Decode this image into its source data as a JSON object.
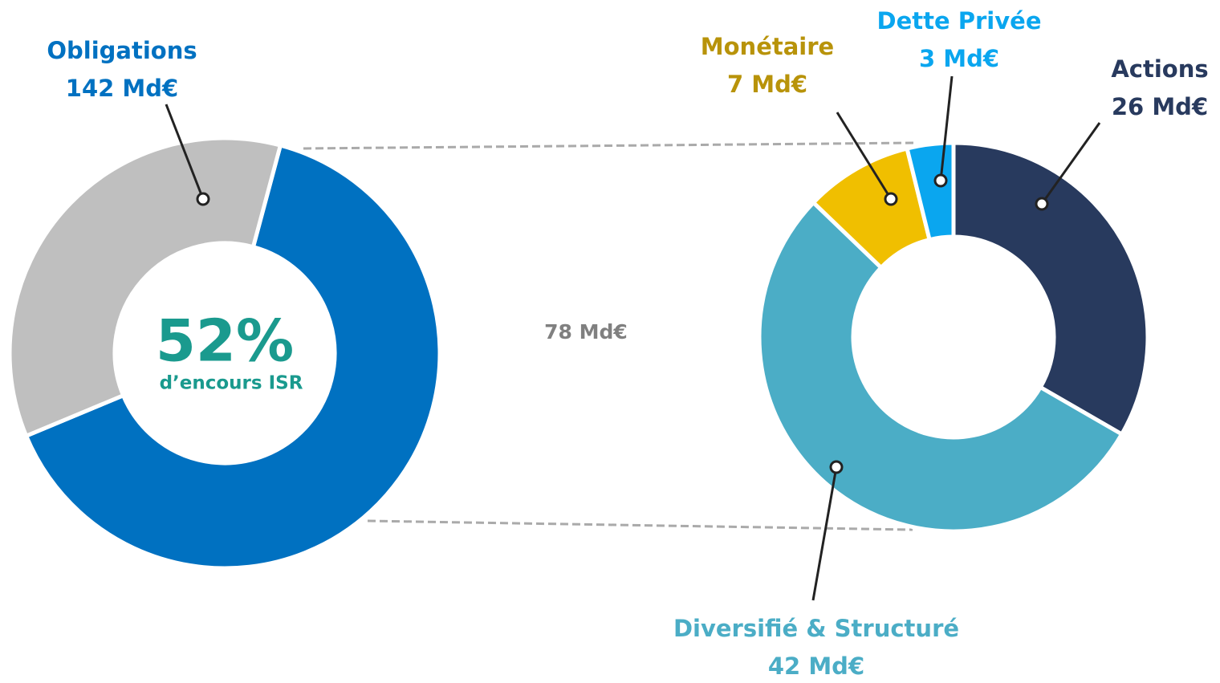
{
  "chart_data": [
    {
      "type": "donut",
      "categories": [
        "Obligations",
        null
      ],
      "values": [
        142,
        78
      ],
      "value_labels": [
        "142 Md€",
        "78 Md€"
      ],
      "colors": [
        "#0071c1",
        "#bfbfbf"
      ],
      "center_value": "52%",
      "center_label": "d’encours ISR"
    },
    {
      "type": "donut",
      "categories": [
        "Actions",
        "Diversifié & Structuré",
        "Monétaire",
        "Dette Privée"
      ],
      "values": [
        26,
        42,
        7,
        3
      ],
      "value_labels": [
        "26 Md€",
        "42 Md€",
        "7 Md€",
        "3 Md€"
      ],
      "colors": [
        "#283a5e",
        "#4badc6",
        "#f0bf00",
        "#0aa6ef"
      ]
    }
  ]
}
